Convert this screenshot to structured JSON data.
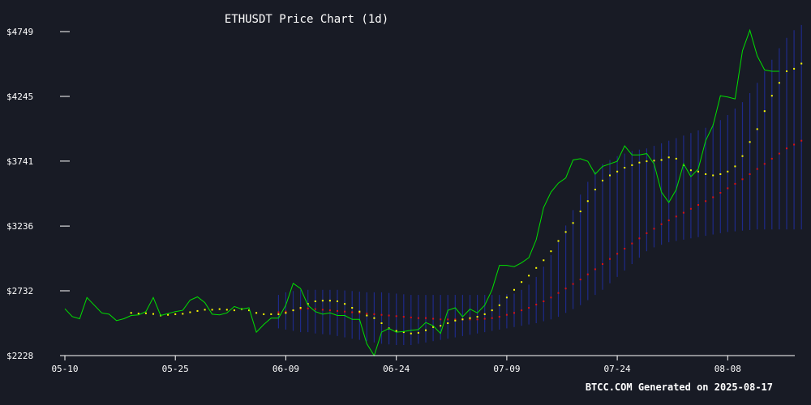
{
  "chart_data": {
    "type": "line",
    "title": "ETHUSDT Price Chart (1d)",
    "footer": "BTCC.COM Generated on 2025-08-17",
    "x_ticks": [
      "05-10",
      "05-25",
      "06-09",
      "06-24",
      "07-09",
      "07-24",
      "08-08"
    ],
    "y_ticks": [
      "$2228",
      "$2732",
      "$3236",
      "$3741",
      "$4245",
      "$4749"
    ],
    "ylim": [
      2228,
      4749
    ],
    "x_range": [
      "2025-05-10",
      "2025-08-16"
    ],
    "grid": false,
    "colors": {
      "background": "#181b25",
      "price": "#00e000",
      "ma_short": "#ffff00",
      "ma_long": "#dd1111",
      "band": "#1e2a88",
      "axis": "#ffffff"
    },
    "series": [
      {
        "name": "",
        "key": "price",
        "style": "line",
        "start": "2025-05-10",
        "values": [
          2592,
          2532,
          2515,
          2680,
          2620,
          2560,
          2550,
          2500,
          2515,
          2540,
          2545,
          2570,
          2680,
          2540,
          2555,
          2570,
          2580,
          2660,
          2685,
          2640,
          2550,
          2545,
          2560,
          2610,
          2590,
          2600,
          2410,
          2470,
          2520,
          2520,
          2620,
          2790,
          2750,
          2620,
          2570,
          2550,
          2560,
          2540,
          2540,
          2510,
          2510,
          2320,
          2228,
          2410,
          2440,
          2410,
          2415,
          2425,
          2430,
          2485,
          2460,
          2400,
          2580,
          2600,
          2530,
          2590,
          2560,
          2620,
          2740,
          2930,
          2930,
          2920,
          2950,
          2990,
          3130,
          3380,
          3500,
          3570,
          3610,
          3750,
          3760,
          3740,
          3640,
          3700,
          3720,
          3740,
          3860,
          3790,
          3790,
          3800,
          3720,
          3500,
          3420,
          3520,
          3720,
          3620,
          3680,
          3900,
          4020,
          4250,
          4240,
          4225,
          4600,
          4760,
          4560,
          4450,
          4440,
          4440
        ]
      },
      {
        "name": "",
        "key": "ma_short",
        "style": "dots",
        "start": "2025-05-19",
        "values": [
          2560,
          2555,
          2557,
          2552,
          2540,
          2545,
          2550,
          2553,
          2565,
          2575,
          2585,
          2585,
          2590,
          2585,
          2580,
          2590,
          2580,
          2560,
          2550,
          2550,
          2550,
          2560,
          2580,
          2600,
          2630,
          2650,
          2655,
          2655,
          2650,
          2630,
          2600,
          2570,
          2540,
          2520,
          2480,
          2440,
          2420,
          2410,
          2400,
          2405,
          2425,
          2450,
          2460,
          2480,
          2500,
          2510,
          2520,
          2530,
          2550,
          2580,
          2620,
          2680,
          2740,
          2800,
          2850,
          2910,
          2970,
          3040,
          3120,
          3190,
          3260,
          3350,
          3430,
          3520,
          3590,
          3630,
          3660,
          3690,
          3710,
          3730,
          3740,
          3745,
          3750,
          3770,
          3760,
          3710,
          3670,
          3660,
          3640,
          3630,
          3640,
          3660,
          3700,
          3780,
          3890,
          3990,
          4130,
          4250,
          4350,
          4440,
          4460,
          4500
        ]
      },
      {
        "name": "",
        "key": "ma_long",
        "style": "dots",
        "start": "2025-06-08",
        "values": [
          2565,
          2570,
          2580,
          2590,
          2595,
          2590,
          2585,
          2580,
          2575,
          2570,
          2565,
          2560,
          2555,
          2550,
          2545,
          2540,
          2535,
          2530,
          2525,
          2520,
          2520,
          2515,
          2510,
          2510,
          2510,
          2510,
          2510,
          2510,
          2515,
          2520,
          2530,
          2545,
          2560,
          2580,
          2600,
          2625,
          2650,
          2680,
          2715,
          2750,
          2785,
          2820,
          2860,
          2900,
          2940,
          2980,
          3020,
          3060,
          3100,
          3140,
          3180,
          3215,
          3250,
          3280,
          3310,
          3340,
          3370,
          3400,
          3430,
          3460,
          3495,
          3530,
          3565,
          3600,
          3640,
          3680,
          3720,
          3760,
          3800,
          3840,
          3870,
          3900
        ]
      }
    ],
    "band": {
      "start": "2025-06-08",
      "upper": [
        2700,
        2720,
        2730,
        2740,
        2740,
        2740,
        2740,
        2740,
        2740,
        2735,
        2730,
        2725,
        2720,
        2720,
        2720,
        2715,
        2710,
        2705,
        2700,
        2700,
        2700,
        2700,
        2700,
        2700,
        2700,
        2700,
        2700,
        2700,
        2700,
        2700,
        2700,
        2705,
        2710,
        2740,
        2780,
        2840,
        2920,
        3010,
        3120,
        3240,
        3360,
        3480,
        3580,
        3660,
        3720,
        3750,
        3780,
        3800,
        3820,
        3830,
        3840,
        3860,
        3880,
        3900,
        3920,
        3940,
        3960,
        3980,
        4000,
        4030,
        4060,
        4100,
        4150,
        4200,
        4270,
        4350,
        4440,
        4530,
        4620,
        4700,
        4760,
        4800
      ],
      "lower": [
        2440,
        2430,
        2420,
        2410,
        2410,
        2400,
        2395,
        2390,
        2380,
        2370,
        2360,
        2350,
        2340,
        2330,
        2320,
        2315,
        2310,
        2310,
        2310,
        2320,
        2330,
        2340,
        2350,
        2360,
        2370,
        2380,
        2390,
        2400,
        2410,
        2420,
        2430,
        2440,
        2450,
        2460,
        2470,
        2480,
        2495,
        2510,
        2530,
        2560,
        2590,
        2620,
        2660,
        2700,
        2740,
        2790,
        2840,
        2890,
        2940,
        2990,
        3040,
        3070,
        3090,
        3110,
        3120,
        3130,
        3140,
        3150,
        3160,
        3170,
        3180,
        3190,
        3195,
        3200,
        3205,
        3210,
        3210,
        3210,
        3210,
        3210,
        3210,
        3210
      ]
    }
  }
}
